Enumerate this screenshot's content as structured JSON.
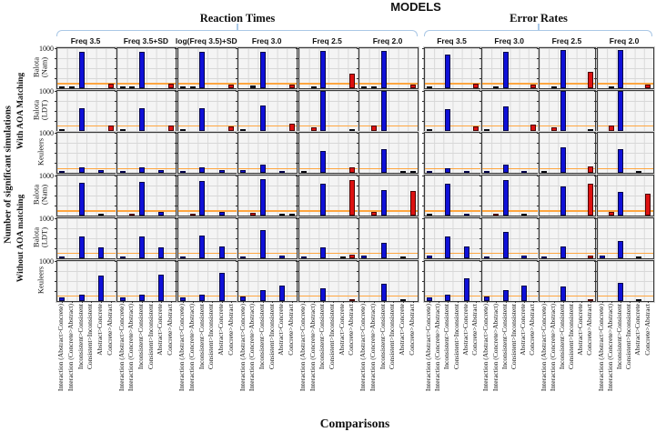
{
  "chart_data": {
    "type": "bar",
    "title": "MODELS",
    "xlabel": "Comparisons",
    "ylabel": "Number of significant simulations",
    "ytick_label": "1000",
    "ylim": [
      0,
      1000
    ],
    "threshold": 100,
    "grid": true,
    "categories": [
      "Interaction (Abstract>Concrete)",
      "Interaction (Concrete>Abstract)",
      "Inconsistent>Consistent",
      "Consistent>Inconsistent",
      "Abstract>Concrete",
      "Concrete>Abstract"
    ],
    "col_groups": [
      {
        "label": "Reaction Times",
        "columns": [
          "Freq 3.5",
          "Freq 3.5+SD",
          "log(Freq 3.5)+SD",
          "Freq 3.0",
          "Freq 2.5",
          "Freq 2.0"
        ]
      },
      {
        "label": "Error Rates",
        "columns": [
          "Freq 3.5",
          "Freq 3.0",
          "Freq 2.5",
          "Freq 2.0"
        ]
      }
    ],
    "row_groups": [
      {
        "label": "With AOA Matching",
        "rows": [
          "Balota (Nam)",
          "Balota (LDT)",
          "Keuleers"
        ]
      },
      {
        "label": "Without AOA matching",
        "rows": [
          "Balota (Nam)",
          "Balota (LDT)",
          "Keuleers"
        ]
      }
    ],
    "colors": {
      "blue": "#0f10d8",
      "red": "#dd1111",
      "dark": "#1c1c30",
      "threshold": "#ffa640",
      "bracket": "#aac8e6"
    },
    "cells": [
      [
        [
          [
            30,
            30,
            900,
            0,
            0,
            110
          ],
          "kkb..r"
        ],
        [
          [
            30,
            50,
            900,
            0,
            0,
            110
          ],
          "kkb..r"
        ],
        [
          [
            30,
            50,
            900,
            0,
            0,
            100
          ],
          "kkb..r"
        ],
        [
          [
            0,
            60,
            920,
            0,
            0,
            90
          ],
          ".kb..r"
        ],
        [
          [
            0,
            40,
            930,
            0,
            0,
            360
          ],
          ".kb..r"
        ],
        [
          [
            30,
            30,
            940,
            0,
            0,
            100
          ],
          "kkb..r"
        ],
        [
          [
            30,
            0,
            850,
            0,
            0,
            110
          ],
          "k.b..r"
        ],
        [
          [
            0,
            40,
            900,
            0,
            0,
            100
          ],
          ".kb..r"
        ],
        [
          [
            0,
            40,
            950,
            0,
            0,
            400
          ],
          ".kb..r"
        ],
        [
          [
            0,
            30,
            950,
            0,
            0,
            100
          ],
          ".kb..r"
        ]
      ],
      [
        [
          [
            40,
            0,
            560,
            0,
            0,
            130
          ],
          "k.b..r"
        ],
        [
          [
            40,
            0,
            560,
            0,
            0,
            130
          ],
          "k.b..r"
        ],
        [
          [
            40,
            0,
            560,
            0,
            0,
            100
          ],
          "k.b..r"
        ],
        [
          [
            50,
            0,
            640,
            0,
            0,
            170
          ],
          "k.b..r"
        ],
        [
          [
            0,
            90,
            1000,
            0,
            0,
            40
          ],
          ".rb..k"
        ],
        [
          [
            0,
            120,
            1000,
            0,
            0,
            0
          ],
          ".rb..."
        ],
        [
          [
            40,
            0,
            550,
            0,
            0,
            100
          ],
          "k.b..r"
        ],
        [
          [
            40,
            0,
            600,
            0,
            0,
            150
          ],
          "k.b..r"
        ],
        [
          [
            0,
            80,
            1000,
            0,
            0,
            40
          ],
          ".rb..k"
        ],
        [
          [
            0,
            120,
            1000,
            0,
            0,
            0
          ],
          ".rb..."
        ]
      ],
      [
        [
          [
            50,
            0,
            150,
            0,
            70,
            0
          ],
          "b.b.b."
        ],
        [
          [
            60,
            0,
            140,
            0,
            80,
            0
          ],
          "b.b.b."
        ],
        [
          [
            50,
            0,
            140,
            0,
            80,
            0
          ],
          "b.b.b."
        ],
        [
          [
            70,
            0,
            220,
            0,
            50,
            0
          ],
          "b.b.b."
        ],
        [
          [
            20,
            0,
            550,
            0,
            0,
            150
          ],
          "k.b..r"
        ],
        [
          [
            0,
            0,
            600,
            0,
            20,
            20
          ],
          "..b.kk"
        ],
        [
          [
            40,
            0,
            120,
            0,
            50,
            0
          ],
          "b.b.b."
        ],
        [
          [
            60,
            0,
            220,
            0,
            50,
            0
          ],
          "b.b.b."
        ],
        [
          [
            20,
            0,
            650,
            0,
            0,
            180
          ],
          "k.b..r"
        ],
        [
          [
            0,
            0,
            600,
            0,
            30,
            0
          ],
          "..b.k."
        ]
      ],
      [
        [
          [
            0,
            0,
            820,
            0,
            40,
            0
          ],
          "..b.k."
        ],
        [
          [
            0,
            50,
            850,
            0,
            90,
            0
          ],
          ".rb.b."
        ],
        [
          [
            0,
            40,
            870,
            0,
            90,
            0
          ],
          ".rb.b."
        ],
        [
          [
            0,
            70,
            920,
            0,
            30,
            30
          ],
          ".rb.kk"
        ],
        [
          [
            0,
            0,
            790,
            0,
            0,
            900
          ],
          "..b..r"
        ],
        [
          [
            0,
            90,
            650,
            0,
            0,
            620
          ],
          ".rb..r"
        ],
        [
          [
            30,
            0,
            790,
            0,
            60,
            0
          ],
          "k.b.b."
        ],
        [
          [
            0,
            50,
            880,
            0,
            40,
            0
          ],
          ".rb.k."
        ],
        [
          [
            0,
            0,
            720,
            0,
            0,
            800
          ],
          "..b..r"
        ],
        [
          [
            0,
            90,
            600,
            0,
            0,
            560
          ],
          ".rb..r"
        ]
      ],
      [
        [
          [
            50,
            0,
            550,
            0,
            280,
            0
          ],
          "b.b.b."
        ],
        [
          [
            50,
            0,
            550,
            0,
            280,
            0
          ],
          "b.b.b."
        ],
        [
          [
            50,
            0,
            560,
            0,
            300,
            0
          ],
          "b.b.b."
        ],
        [
          [
            40,
            0,
            700,
            0,
            70,
            0
          ],
          "b.b.b."
        ],
        [
          [
            40,
            0,
            280,
            0,
            20,
            80
          ],
          "b.b.kr"
        ],
        [
          [
            60,
            0,
            380,
            0,
            40,
            0
          ],
          "b.b.k."
        ],
        [
          [
            70,
            0,
            550,
            0,
            300,
            0
          ],
          "b.b.b."
        ],
        [
          [
            40,
            0,
            650,
            0,
            70,
            0
          ],
          "b.b.b."
        ],
        [
          [
            50,
            0,
            300,
            0,
            0,
            70
          ],
          "b.b..r"
        ],
        [
          [
            60,
            0,
            420,
            0,
            50,
            0
          ],
          "b.b.k."
        ]
      ],
      [
        [
          [
            80,
            0,
            160,
            0,
            620,
            0
          ],
          "b.b.b."
        ],
        [
          [
            80,
            0,
            140,
            0,
            660,
            0
          ],
          "b.b.b."
        ],
        [
          [
            80,
            0,
            140,
            0,
            700,
            0
          ],
          "b.b.b."
        ],
        [
          [
            100,
            0,
            260,
            0,
            370,
            0
          ],
          "b.b.b."
        ],
        [
          [
            0,
            0,
            300,
            0,
            0,
            40
          ],
          "..b..r"
        ],
        [
          [
            0,
            0,
            420,
            0,
            30,
            0
          ],
          "..b.k."
        ],
        [
          [
            70,
            0,
            160,
            0,
            550,
            0
          ],
          "b.b.b."
        ],
        [
          [
            100,
            0,
            260,
            0,
            370,
            0
          ],
          "b.b.b."
        ],
        [
          [
            0,
            0,
            350,
            0,
            0,
            40
          ],
          "..b..r"
        ],
        [
          [
            0,
            0,
            450,
            0,
            30,
            0
          ],
          "..b.k."
        ]
      ]
    ]
  }
}
